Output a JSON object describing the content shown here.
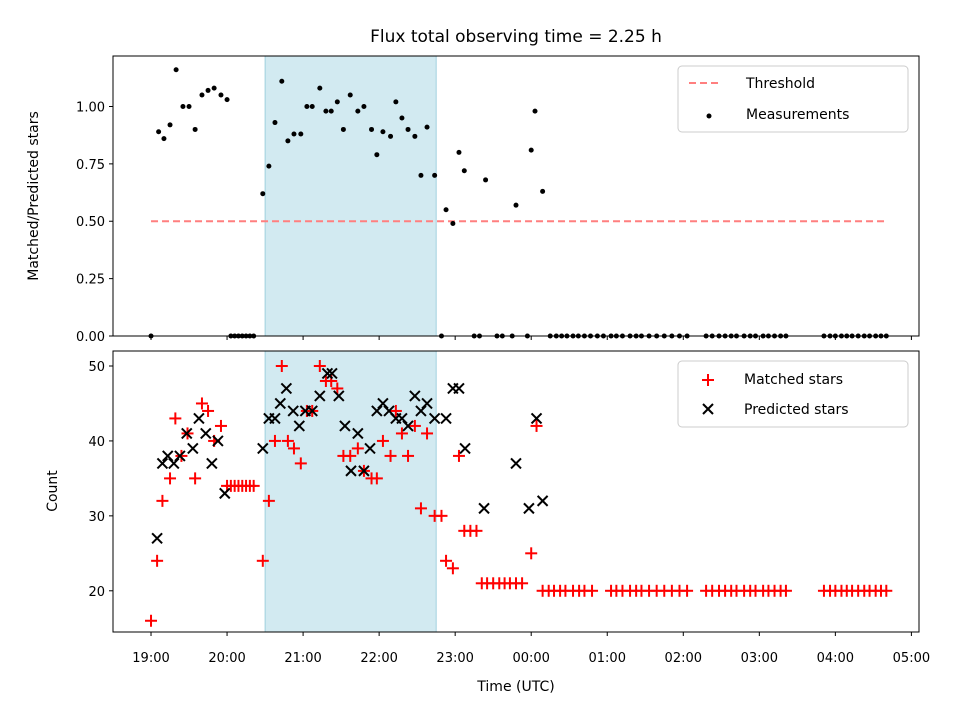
{
  "chart_data": [
    {
      "type": "scatter",
      "title": "Flux total observing time = 2.25 h",
      "xlabel": "",
      "ylabel": "Matched/Predicted stars",
      "xlim": [
        18.5,
        29.1
      ],
      "ylim": [
        0,
        1.22
      ],
      "yticks": [
        0.0,
        0.25,
        0.5,
        0.75,
        1.0
      ],
      "ytick_labels": [
        "0.00",
        "0.25",
        "0.50",
        "0.75",
        "1.00"
      ],
      "shaded_span": [
        20.5,
        22.75
      ],
      "threshold": {
        "name": "Threshold",
        "y": 0.5,
        "x_range": [
          19.0,
          28.65
        ],
        "color": "#ff7f7f"
      },
      "legend": [
        "Threshold",
        "Measurements"
      ],
      "series": [
        {
          "name": "Measurements",
          "color": "#000000",
          "marker": "dot",
          "x": [
            19.0,
            19.1,
            19.17,
            19.25,
            19.33,
            19.42,
            19.5,
            19.58,
            19.67,
            19.75,
            19.83,
            19.92,
            20.0,
            20.05,
            20.1,
            20.15,
            20.2,
            20.25,
            20.3,
            20.35,
            20.47,
            20.55,
            20.63,
            20.72,
            20.8,
            20.88,
            20.97,
            21.05,
            21.12,
            21.22,
            21.3,
            21.37,
            21.45,
            21.53,
            21.62,
            21.72,
            21.8,
            21.9,
            21.97,
            22.05,
            22.15,
            22.22,
            22.3,
            22.38,
            22.47,
            22.55,
            22.63,
            22.73,
            22.82,
            22.88,
            22.97,
            23.05,
            23.12,
            23.25,
            23.32,
            23.4,
            23.55,
            23.62,
            23.75,
            23.8,
            23.95,
            24.0,
            24.05,
            24.15,
            24.25,
            24.33,
            24.4,
            24.47,
            24.55,
            24.62,
            24.7,
            24.78,
            24.87,
            24.95,
            25.05,
            25.12,
            25.2,
            25.3,
            25.38,
            25.45,
            25.55,
            25.65,
            25.75,
            25.85,
            25.95,
            26.05,
            26.3,
            26.38,
            26.47,
            26.55,
            26.63,
            26.7,
            26.8,
            26.88,
            26.95,
            27.05,
            27.12,
            27.2,
            27.28,
            27.35,
            27.85,
            27.93,
            28.0,
            28.08,
            28.15,
            28.22,
            28.3,
            28.38,
            28.45,
            28.53,
            28.6,
            28.67
          ],
          "y": [
            0.0,
            0.89,
            0.86,
            0.92,
            1.16,
            1.0,
            1.0,
            0.9,
            1.05,
            1.07,
            1.08,
            1.05,
            1.03,
            0.0,
            0.0,
            0.0,
            0.0,
            0.0,
            0.0,
            0.0,
            0.62,
            0.74,
            0.93,
            1.11,
            0.85,
            0.88,
            0.88,
            1.0,
            1.0,
            1.08,
            0.98,
            0.98,
            1.02,
            0.9,
            1.05,
            0.98,
            1.0,
            0.9,
            0.79,
            0.89,
            0.87,
            1.02,
            0.95,
            0.9,
            0.87,
            0.7,
            0.91,
            0.7,
            0.0,
            0.55,
            0.49,
            0.8,
            0.72,
            0.0,
            0.0,
            0.68,
            0.0,
            0.0,
            0.0,
            0.57,
            0.0,
            0.81,
            0.98,
            0.63,
            0.0,
            0.0,
            0.0,
            0.0,
            0.0,
            0.0,
            0.0,
            0.0,
            0.0,
            0.0,
            0.0,
            0.0,
            0.0,
            0.0,
            0.0,
            0.0,
            0.0,
            0.0,
            0.0,
            0.0,
            0.0,
            0.0,
            0.0,
            0.0,
            0.0,
            0.0,
            0.0,
            0.0,
            0.0,
            0.0,
            0.0,
            0.0,
            0.0,
            0.0,
            0.0,
            0.0,
            0.0,
            0.0,
            0.0,
            0.0,
            0.0,
            0.0,
            0.0,
            0.0,
            0.0,
            0.0,
            0.0,
            0.0
          ]
        }
      ]
    },
    {
      "type": "scatter",
      "title": "",
      "xlabel": "Time (UTC)",
      "ylabel": "Count",
      "xlim": [
        18.5,
        29.1
      ],
      "ylim": [
        14.5,
        52
      ],
      "yticks": [
        20,
        30,
        40,
        50
      ],
      "ytick_labels": [
        "20",
        "30",
        "40",
        "50"
      ],
      "xticks": [
        19,
        20,
        21,
        22,
        23,
        24,
        25,
        26,
        27,
        28,
        29
      ],
      "xtick_labels": [
        "19:00",
        "20:00",
        "21:00",
        "22:00",
        "23:00",
        "00:00",
        "01:00",
        "02:00",
        "03:00",
        "04:00",
        "05:00"
      ],
      "shaded_span": [
        20.5,
        22.75
      ],
      "legend": [
        "Matched stars",
        "Predicted stars"
      ],
      "series": [
        {
          "name": "Matched stars",
          "color": "#ff0000",
          "marker": "plus",
          "x": [
            19.0,
            19.08,
            19.15,
            19.25,
            19.32,
            19.4,
            19.48,
            19.58,
            19.67,
            19.75,
            19.83,
            19.92,
            20.0,
            20.05,
            20.1,
            20.15,
            20.2,
            20.25,
            20.3,
            20.35,
            20.47,
            20.55,
            20.63,
            20.72,
            20.8,
            20.88,
            20.97,
            21.05,
            21.12,
            21.22,
            21.3,
            21.37,
            21.45,
            21.53,
            21.62,
            21.72,
            21.8,
            21.9,
            21.97,
            22.05,
            22.15,
            22.22,
            22.3,
            22.38,
            22.47,
            22.55,
            22.63,
            22.73,
            22.82,
            22.88,
            22.97,
            23.05,
            23.12,
            23.2,
            23.28,
            23.35,
            23.42,
            23.5,
            23.58,
            23.65,
            23.72,
            23.8,
            23.88,
            24.0,
            24.07,
            24.15,
            24.23,
            24.3,
            24.38,
            24.45,
            24.55,
            24.63,
            24.7,
            24.8,
            25.05,
            25.12,
            25.2,
            25.3,
            25.38,
            25.45,
            25.55,
            25.65,
            25.75,
            25.85,
            25.95,
            26.05,
            26.3,
            26.38,
            26.47,
            26.55,
            26.63,
            26.7,
            26.8,
            26.88,
            26.95,
            27.05,
            27.12,
            27.2,
            27.28,
            27.35,
            27.85,
            27.93,
            28.0,
            28.08,
            28.15,
            28.22,
            28.3,
            28.38,
            28.45,
            28.53,
            28.6,
            28.67
          ],
          "y": [
            16,
            24,
            32,
            35,
            43,
            38,
            41,
            35,
            45,
            44,
            40,
            42,
            34,
            34,
            34,
            34,
            34,
            34,
            34,
            34,
            24,
            32,
            40,
            50,
            40,
            39,
            37,
            44,
            44,
            50,
            48,
            48,
            47,
            38,
            38,
            39,
            36,
            35,
            35,
            40,
            38,
            44,
            41,
            38,
            42,
            31,
            41,
            30,
            30,
            24,
            23,
            38,
            28,
            28,
            28,
            21,
            21,
            21,
            21,
            21,
            21,
            21,
            21,
            25,
            42,
            20,
            20,
            20,
            20,
            20,
            20,
            20,
            20,
            20,
            20,
            20,
            20,
            20,
            20,
            20,
            20,
            20,
            20,
            20,
            20,
            20,
            20,
            20,
            20,
            20,
            20,
            20,
            20,
            20,
            20,
            20,
            20,
            20,
            20,
            20,
            20,
            20,
            20,
            20,
            20,
            20,
            20,
            20,
            20,
            20,
            20,
            20
          ]
        },
        {
          "name": "Predicted stars",
          "color": "#000000",
          "marker": "x",
          "x": [
            19.08,
            19.15,
            19.22,
            19.3,
            19.38,
            19.47,
            19.55,
            19.63,
            19.72,
            19.8,
            19.88,
            19.97,
            20.47,
            20.55,
            20.63,
            20.7,
            20.78,
            20.87,
            20.95,
            21.03,
            21.12,
            21.22,
            21.32,
            21.38,
            21.47,
            21.55,
            21.63,
            21.72,
            21.8,
            21.88,
            21.97,
            22.05,
            22.13,
            22.22,
            22.3,
            22.38,
            22.47,
            22.55,
            22.63,
            22.73,
            22.88,
            22.97,
            23.05,
            23.13,
            23.38,
            23.8,
            23.97,
            24.07,
            24.15
          ],
          "y": [
            27,
            37,
            38,
            37,
            38,
            41,
            39,
            43,
            41,
            37,
            40,
            33,
            39,
            43,
            43,
            45,
            47,
            44,
            42,
            44,
            44,
            46,
            49,
            49,
            46,
            42,
            36,
            41,
            36,
            39,
            44,
            45,
            44,
            43,
            43,
            42,
            46,
            44,
            45,
            43,
            43,
            47,
            47,
            39,
            31,
            37,
            31,
            43,
            32
          ]
        }
      ]
    }
  ]
}
